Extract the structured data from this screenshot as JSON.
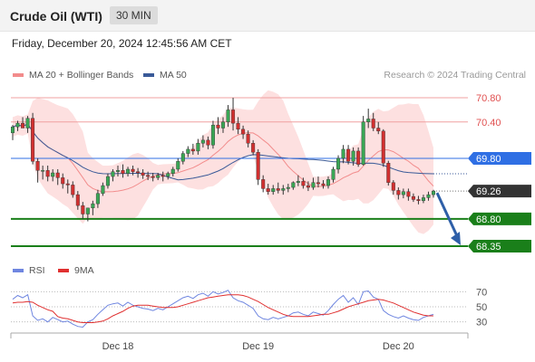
{
  "header": {
    "title": "Crude Oil (WTI)",
    "timeframe": "30 MIN",
    "datetime": "Friday, December 20, 2024 12:45:56 AM CET"
  },
  "chart_data": {
    "type": "candlestick",
    "source": "Research © 2024 Trading Central",
    "legend": [
      {
        "name": "MA 20 + Bollinger Bands",
        "color": "#f28c8c"
      },
      {
        "name": "MA 50",
        "color": "#3a5a98"
      }
    ],
    "y_range": [
      68.2,
      70.95
    ],
    "x_labels": [
      "Dec 18",
      "Dec 19",
      "Dec 20"
    ],
    "x_label_index": [
      21,
      49,
      77
    ],
    "levels": [
      {
        "value": 70.8,
        "label": "70.80",
        "kind": "resistance",
        "color": "#f0a0a0"
      },
      {
        "value": 70.4,
        "label": "70.40",
        "kind": "resistance",
        "color": "#f0a0a0"
      },
      {
        "value": 69.8,
        "label": "69.80",
        "kind": "pivot",
        "color": "#2f6fe4"
      },
      {
        "value": 69.26,
        "label": "69.26",
        "kind": "last",
        "color": "#333333"
      },
      {
        "value": 68.8,
        "label": "68.80",
        "kind": "support",
        "color": "#1a7f1a"
      },
      {
        "value": 68.35,
        "label": "68.35",
        "kind": "support",
        "color": "#1a7f1a"
      }
    ],
    "candles": {
      "open": [
        70.22,
        70.32,
        70.38,
        70.3,
        70.46,
        69.75,
        69.6,
        69.6,
        69.5,
        69.56,
        69.48,
        69.38,
        69.36,
        69.2,
        69.02,
        68.88,
        68.98,
        69.05,
        69.22,
        69.35,
        69.5,
        69.58,
        69.6,
        69.55,
        69.62,
        69.58,
        69.56,
        69.52,
        69.5,
        69.48,
        69.52,
        69.5,
        69.55,
        69.62,
        69.75,
        69.88,
        69.95,
        69.92,
        70.05,
        70.1,
        70.02,
        70.35,
        70.3,
        70.4,
        70.6,
        70.38,
        70.28,
        70.2,
        70.05,
        69.9,
        69.45,
        69.3,
        69.25,
        69.3,
        69.27,
        69.3,
        69.32,
        69.4,
        69.42,
        69.35,
        69.32,
        69.4,
        69.38,
        69.35,
        69.45,
        69.62,
        69.8,
        69.95,
        69.75,
        69.92,
        69.7,
        70.4,
        70.45,
        70.3,
        70.25,
        69.72,
        69.4,
        69.27,
        69.2,
        69.25,
        69.17,
        69.12,
        69.1,
        69.15,
        69.2
      ],
      "high": [
        70.35,
        70.42,
        70.48,
        70.5,
        70.55,
        69.8,
        69.68,
        69.68,
        69.62,
        69.62,
        69.55,
        69.45,
        69.42,
        69.26,
        69.08,
        68.98,
        69.1,
        69.28,
        69.4,
        69.55,
        69.62,
        69.68,
        69.7,
        69.66,
        69.68,
        69.64,
        69.62,
        69.58,
        69.56,
        69.56,
        69.58,
        69.58,
        69.66,
        69.8,
        69.92,
        70.0,
        70.04,
        70.12,
        70.18,
        70.16,
        70.42,
        70.48,
        70.48,
        70.68,
        70.8,
        70.48,
        70.34,
        70.26,
        70.1,
        69.95,
        69.52,
        69.38,
        69.36,
        69.4,
        69.36,
        69.38,
        69.42,
        69.52,
        69.48,
        69.42,
        69.48,
        69.5,
        69.44,
        69.5,
        69.66,
        69.85,
        70.02,
        70.02,
        69.98,
        69.98,
        70.5,
        70.62,
        70.55,
        70.4,
        70.28,
        69.76,
        69.44,
        69.32,
        69.3,
        69.3,
        69.22,
        69.18,
        69.2,
        69.25,
        69.28
      ],
      "low": [
        70.1,
        70.25,
        70.3,
        70.22,
        69.7,
        69.4,
        69.45,
        69.42,
        69.42,
        69.36,
        69.3,
        69.22,
        69.15,
        68.95,
        68.8,
        68.76,
        68.86,
        68.98,
        69.18,
        69.3,
        69.42,
        69.5,
        69.48,
        69.5,
        69.52,
        69.48,
        69.46,
        69.44,
        69.42,
        69.44,
        69.42,
        69.45,
        69.5,
        69.58,
        69.7,
        69.82,
        69.86,
        69.86,
        69.98,
        69.95,
        69.96,
        70.2,
        70.22,
        70.32,
        70.26,
        70.2,
        70.12,
        69.98,
        69.85,
        69.36,
        69.24,
        69.2,
        69.2,
        69.22,
        69.2,
        69.24,
        69.28,
        69.34,
        69.3,
        69.26,
        69.28,
        69.32,
        69.3,
        69.3,
        69.4,
        69.55,
        69.72,
        69.7,
        69.68,
        69.66,
        69.68,
        70.3,
        70.25,
        70.2,
        69.66,
        69.35,
        69.2,
        69.12,
        69.14,
        69.1,
        69.08,
        69.04,
        69.06,
        69.1,
        69.15
      ],
      "close": [
        70.32,
        70.38,
        70.3,
        70.46,
        69.75,
        69.6,
        69.6,
        69.5,
        69.56,
        69.48,
        69.38,
        69.36,
        69.2,
        69.02,
        68.88,
        68.98,
        69.05,
        69.22,
        69.35,
        69.5,
        69.58,
        69.6,
        69.55,
        69.62,
        69.58,
        69.56,
        69.52,
        69.5,
        69.48,
        69.52,
        69.5,
        69.55,
        69.62,
        69.75,
        69.88,
        69.95,
        69.92,
        70.05,
        70.1,
        70.02,
        70.35,
        70.3,
        70.4,
        70.6,
        70.38,
        70.28,
        70.2,
        70.05,
        69.9,
        69.45,
        69.3,
        69.25,
        69.3,
        69.27,
        69.3,
        69.32,
        69.4,
        69.42,
        69.35,
        69.32,
        69.4,
        69.38,
        69.35,
        69.45,
        69.62,
        69.8,
        69.95,
        69.75,
        69.92,
        69.7,
        70.4,
        70.45,
        70.3,
        70.25,
        69.72,
        69.4,
        69.27,
        69.2,
        69.25,
        69.17,
        69.12,
        69.1,
        69.15,
        69.2,
        69.26
      ]
    },
    "rsi_panel": {
      "legend": [
        {
          "name": "RSI",
          "color": "#6f86e0"
        },
        {
          "name": "9MA",
          "color": "#e03030"
        }
      ],
      "y_range": [
        20,
        80
      ],
      "ticks": [
        70,
        50,
        30
      ],
      "rsi": [
        60,
        65,
        62,
        66,
        38,
        32,
        34,
        30,
        36,
        33,
        30,
        31,
        27,
        24,
        23,
        30,
        33,
        40,
        46,
        52,
        54,
        55,
        51,
        56,
        52,
        50,
        48,
        47,
        45,
        48,
        46,
        50,
        54,
        58,
        62,
        64,
        61,
        66,
        68,
        64,
        70,
        67,
        69,
        72,
        62,
        58,
        56,
        52,
        48,
        38,
        34,
        33,
        36,
        34,
        36,
        38,
        42,
        43,
        40,
        38,
        43,
        41,
        39,
        45,
        53,
        60,
        65,
        56,
        62,
        53,
        70,
        71,
        63,
        60,
        45,
        40,
        37,
        35,
        38,
        35,
        33,
        32,
        36,
        38,
        40
      ],
      "ma9": [
        55,
        56,
        56,
        57,
        56,
        52,
        49,
        46,
        44,
        37,
        35,
        34,
        32,
        30,
        29,
        29,
        29,
        30,
        31,
        34,
        38,
        41,
        44,
        48,
        51,
        52,
        52,
        52,
        51,
        50,
        49,
        49,
        49,
        50,
        52,
        54,
        56,
        58,
        60,
        62,
        63,
        64,
        65,
        66,
        66,
        66,
        65,
        63,
        60,
        57,
        53,
        49,
        46,
        43,
        40,
        38,
        37,
        37,
        37,
        37,
        38,
        39,
        40,
        40,
        42,
        44,
        47,
        50,
        52,
        54,
        56,
        58,
        59,
        60,
        59,
        57,
        55,
        52,
        49,
        46,
        43,
        41,
        39,
        38,
        38
      ]
    }
  }
}
